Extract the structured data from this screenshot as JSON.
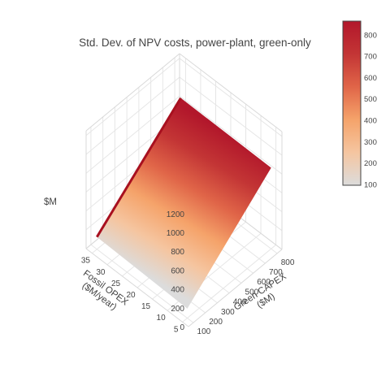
{
  "chart_data": {
    "type": "surface",
    "title": "Std. Dev. of NPV costs, power-plant, green-only",
    "x_axis": {
      "label_lines": [
        "Green CAPEX",
        "($M)"
      ],
      "range": [
        60,
        840
      ],
      "ticks": [
        100,
        200,
        300,
        400,
        500,
        600,
        700,
        800
      ]
    },
    "y_axis": {
      "label_lines": [
        "Fossil OPEX",
        "($M/year)"
      ],
      "range": [
        3,
        37
      ],
      "ticks": [
        5,
        10,
        15,
        20,
        25,
        30,
        35
      ]
    },
    "z_axis": {
      "label": "$M",
      "range": [
        0,
        1250
      ],
      "ticks": [
        0,
        200,
        400,
        600,
        800,
        1000,
        1200
      ]
    },
    "surface": {
      "x": [
        100,
        800
      ],
      "y": [
        5,
        35
      ],
      "z_at_corners": {
        "x100_y35": 130,
        "x100_y5": 100,
        "x800_y35": 870,
        "x800_y5": 860
      }
    },
    "colorbar": {
      "range": [
        100,
        860
      ],
      "ticks": [
        100,
        200,
        300,
        400,
        500,
        600,
        700,
        800
      ],
      "colorscale": [
        "#dcdcdc",
        "#f5c5a0",
        "#f5a36a",
        "#e06548",
        "#c33535",
        "#b2172b"
      ]
    }
  }
}
